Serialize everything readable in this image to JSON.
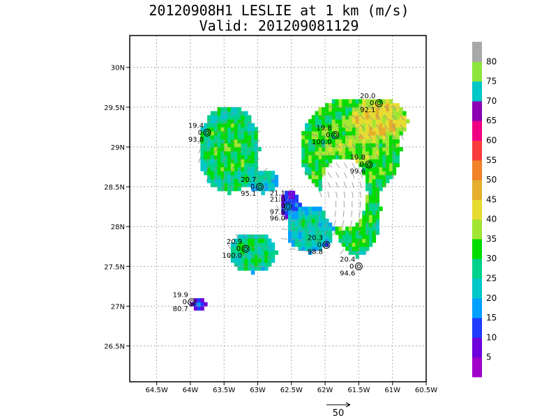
{
  "chart_data": {
    "type": "heatmap",
    "title": "20120908H1 LESLIE at 1 km (m/s)",
    "subtitle": "Valid: 201209081129",
    "xlim": [
      -64.9,
      -60.5
    ],
    "ylim": [
      26.05,
      30.4
    ],
    "x_ticks": [
      -64.5,
      -64,
      -63.5,
      -63,
      -62.5,
      -62,
      -61.5,
      -61,
      -60.5
    ],
    "x_tick_labels": [
      "64.5W",
      "64W",
      "63.5W",
      "63W",
      "62.5W",
      "62W",
      "61.5W",
      "61W",
      "60.5W"
    ],
    "y_ticks": [
      26.5,
      27,
      27.5,
      28,
      28.5,
      29,
      29.5,
      30
    ],
    "y_tick_labels": [
      "26.5N",
      "27N",
      "27.5N",
      "28N",
      "28.5N",
      "29N",
      "29.5N",
      "30N"
    ],
    "grid": true,
    "colorbar": {
      "levels": [
        "5",
        "10",
        "15",
        "20",
        "25",
        "30",
        "35",
        "40",
        "45",
        "50",
        "55",
        "60",
        "65",
        "70",
        "75",
        "80"
      ],
      "colors": [
        "#a000c8",
        "#6e00dc",
        "#1e3cff",
        "#00a0ff",
        "#00c8c8",
        "#00d28c",
        "#00dc00",
        "#a0e632",
        "#e6dc32",
        "#e6af2d",
        "#f08228",
        "#fa3c3c",
        "#f00082",
        "#8c00b4",
        "#00c8c8",
        "#8ce63c",
        "#a8a8a8"
      ]
    },
    "stations": [
      {
        "lon": -63.75,
        "lat": 29.18,
        "labels": [
          "19.4",
          "0",
          "93.8"
        ]
      },
      {
        "lon": -61.2,
        "lat": 29.55,
        "labels": [
          "20.0",
          "0",
          "92.1"
        ]
      },
      {
        "lon": -61.85,
        "lat": 29.15,
        "labels": [
          "19.8",
          "0",
          "100.0"
        ]
      },
      {
        "lon": -61.35,
        "lat": 28.78,
        "labels": [
          "19.8",
          "0",
          "99.6"
        ]
      },
      {
        "lon": -62.97,
        "lat": 28.5,
        "labels": [
          "20.7",
          "0",
          "95.1"
        ]
      },
      {
        "lon": -62.55,
        "lat": 28.25,
        "labels": [
          "21.1",
          "21.0",
          "0",
          "97.6",
          "96.0"
        ]
      },
      {
        "lon": -63.18,
        "lat": 27.72,
        "labels": [
          "20.9",
          "0",
          "100.0"
        ]
      },
      {
        "lon": -61.98,
        "lat": 27.77,
        "labels": [
          "20.3",
          "0",
          "98.8"
        ]
      },
      {
        "lon": -61.5,
        "lat": 27.5,
        "labels": [
          "20.4",
          "0",
          "94.6"
        ]
      },
      {
        "lon": -63.98,
        "lat": 27.05,
        "labels": [
          "19.9",
          "0",
          "80.7"
        ]
      }
    ],
    "reference_vector": {
      "label": "50",
      "value": 50
    }
  }
}
